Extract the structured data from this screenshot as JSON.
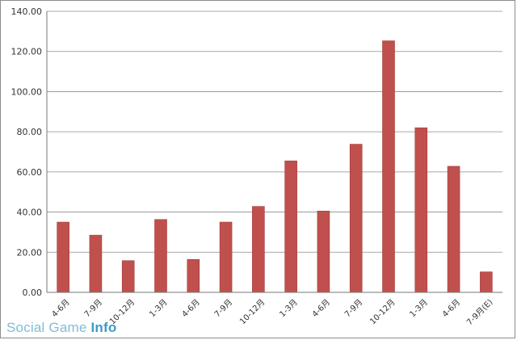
{
  "chart_data": {
    "type": "bar",
    "categories": [
      "4-6月",
      "7-9月",
      "10-12月",
      "1-3月",
      "4-6月",
      "7-9月",
      "10-12月",
      "1-3月",
      "4-6月",
      "7-9月",
      "10-12月",
      "1-3月",
      "4-6月",
      "7-9月(E)"
    ],
    "values": [
      35.0,
      28.5,
      15.8,
      36.3,
      16.4,
      35.0,
      42.8,
      65.5,
      40.5,
      73.8,
      125.3,
      82.0,
      62.8,
      10.2
    ],
    "ylim": [
      0,
      140
    ],
    "ytick_labels": [
      "0.00",
      "20.00",
      "40.00",
      "60.00",
      "80.00",
      "100.00",
      "120.00",
      "140.00"
    ],
    "grid": true,
    "colors": {
      "bar": "#c0504d"
    }
  },
  "watermark": {
    "part1": "Social Game ",
    "part2": "Info"
  }
}
